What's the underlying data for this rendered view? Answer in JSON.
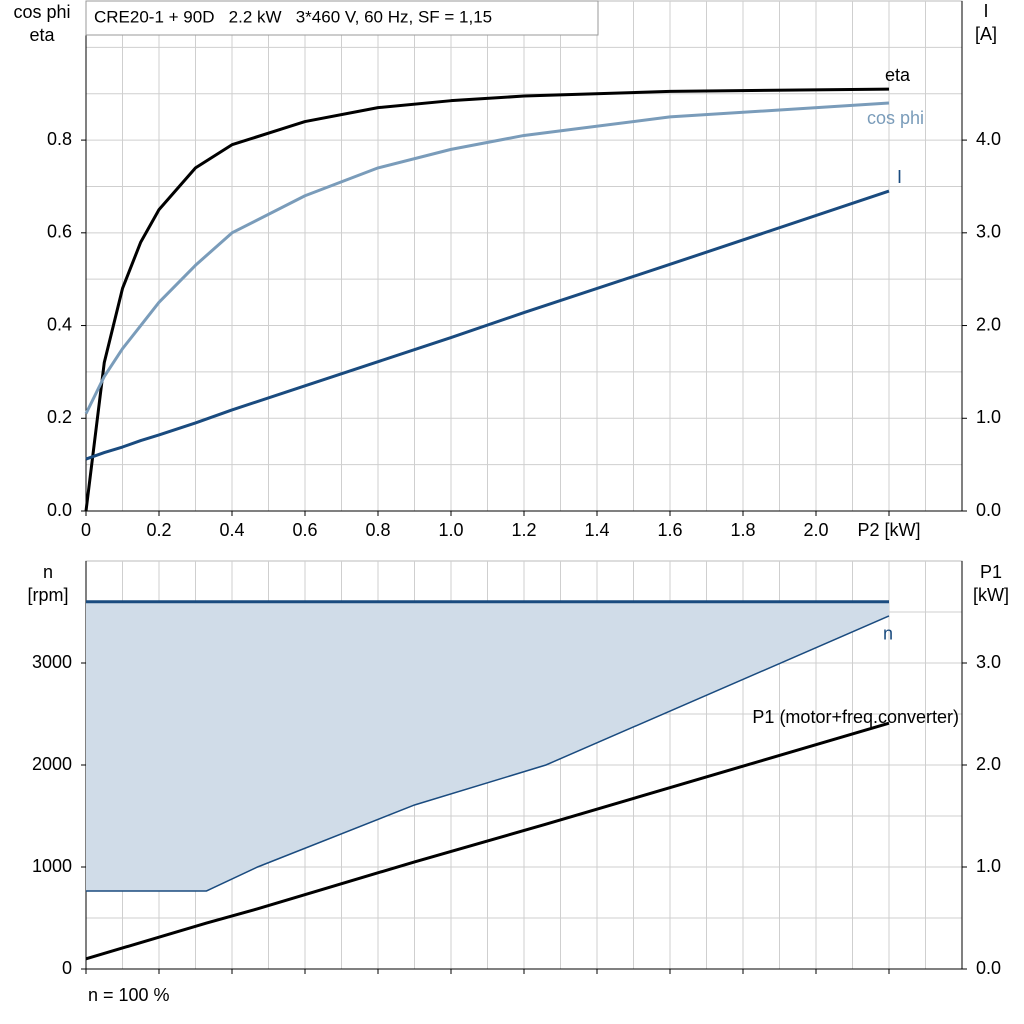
{
  "chart_data": [
    {
      "type": "line",
      "title": "CRE20-1 + 90D   2.2 kW   3*460 V, 60 Hz, SF = 1,15",
      "ylabel": [
        "cos phi",
        "eta"
      ],
      "y2label": [
        "I",
        "[A]"
      ],
      "x": [
        0,
        0.05,
        0.1,
        0.15,
        0.2,
        0.3,
        0.4,
        0.6,
        0.8,
        1.0,
        1.2,
        1.6,
        2.2
      ],
      "xlim": [
        0,
        2.4
      ],
      "xticks": [
        0,
        0.2,
        0.4,
        0.6,
        0.8,
        {
          "value": 1.0,
          "label": "1.0"
        },
        1.2,
        1.4,
        1.6,
        1.8,
        {
          "value": 2.0,
          "label": "2.0"
        },
        {
          "value": 2.2,
          "label": "P2 [kW]"
        }
      ],
      "ylim": [
        0,
        1.1
      ],
      "yticks": [
        {
          "value": 0,
          "label": "0.0"
        },
        0.2,
        0.4,
        0.6,
        0.8
      ],
      "y2lim": [
        0,
        5.5
      ],
      "y2ticks": [
        {
          "value": 0,
          "label": "0.0"
        },
        {
          "value": 1,
          "label": "1.0"
        },
        {
          "value": 2,
          "label": "2.0"
        },
        {
          "value": 3,
          "label": "3.0"
        },
        {
          "value": 4,
          "label": "4.0"
        }
      ],
      "grid": true,
      "minor_grid": true,
      "series": [
        {
          "name": "eta",
          "color": "#000000",
          "values": [
            0,
            0.32,
            0.48,
            0.58,
            0.65,
            0.74,
            0.79,
            0.84,
            0.87,
            0.885,
            0.895,
            0.905,
            0.91
          ]
        },
        {
          "name": "cos phi",
          "color": "#7a9cba",
          "values": [
            0.21,
            0.29,
            0.35,
            0.4,
            0.45,
            0.53,
            0.6,
            0.68,
            0.74,
            0.78,
            0.81,
            0.85,
            0.88
          ]
        },
        {
          "name": "I",
          "color": "#1a4b7f",
          "axis": "y2",
          "values": [
            0.56,
            0.63,
            0.69,
            0.76,
            0.82,
            0.95,
            1.09,
            1.35,
            1.61,
            1.87,
            2.14,
            2.66,
            3.45
          ]
        }
      ]
    },
    {
      "type": "line",
      "ylabel": [
        "n",
        "[rpm]"
      ],
      "y2label": [
        "P1",
        "[kW]"
      ],
      "note": "n = 100 %",
      "x": [
        0,
        0.33,
        0.47,
        0.9,
        1.26,
        2.2
      ],
      "xlim": [
        0,
        2.4
      ],
      "xticks": [
        0,
        0.2,
        0.4,
        0.6,
        0.8,
        1.0,
        1.2,
        1.4,
        1.6,
        1.8,
        2.0,
        2.2
      ],
      "xtick_labels": false,
      "ylim": [
        0,
        4000
      ],
      "yticks": [
        0,
        1000,
        2000,
        3000
      ],
      "y2lim": [
        0,
        4.0
      ],
      "y2ticks": [
        {
          "value": 0,
          "label": "0.0"
        },
        {
          "value": 1,
          "label": "1.0"
        },
        {
          "value": 2,
          "label": "2.0"
        },
        {
          "value": 3,
          "label": "3.0"
        }
      ],
      "grid": true,
      "minor_grid": true,
      "series": [
        {
          "name": "n",
          "color": "#1a4b7f",
          "fill": "#d0dce8",
          "values": [
            3600,
            3600,
            3600,
            3600,
            3600,
            3600
          ],
          "range_min": [
            765,
            765,
            1000,
            1608,
            2000,
            3461
          ]
        },
        {
          "name": "P1 (motor+freq.converter)",
          "color": "#000000",
          "axis": "y2",
          "values": [
            0.1,
            0.45,
            0.59,
            1.05,
            1.42,
            2.41
          ]
        }
      ]
    }
  ]
}
